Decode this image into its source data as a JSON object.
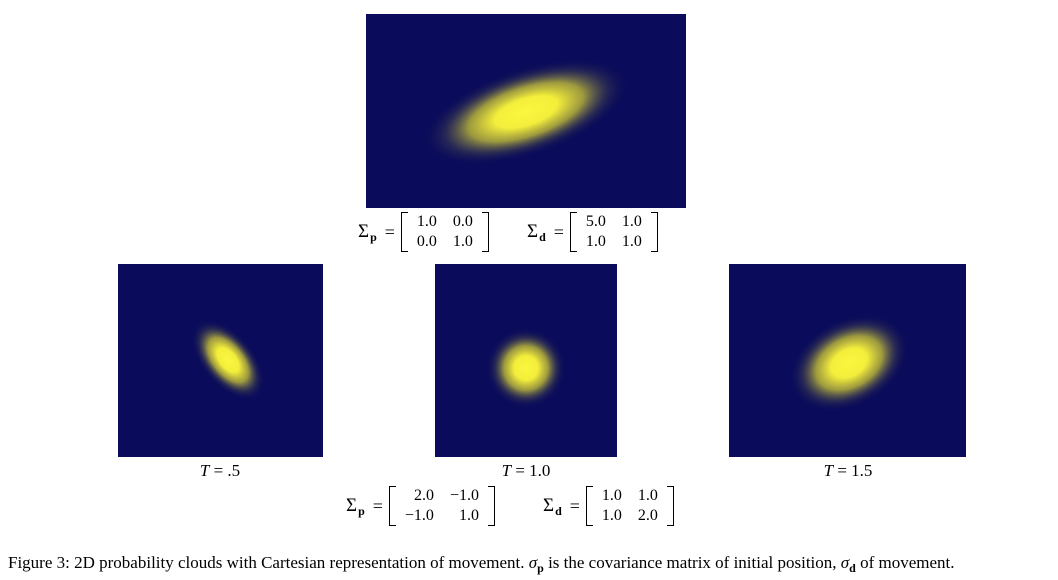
{
  "colors": {
    "background": "#0a0b5a",
    "blob_core": "#f5f03c",
    "blob_mid": "#b9b43a"
  },
  "top_plot": {
    "sigma_p": {
      "symbol": "Σ",
      "sub": "p",
      "equals": "=",
      "rows": [
        [
          "1.0",
          "0.0"
        ],
        [
          "0.0",
          "1.0"
        ]
      ]
    },
    "sigma_d": {
      "symbol": "Σ",
      "sub": "d",
      "equals": "=",
      "rows": [
        [
          "5.0",
          "1.0"
        ],
        [
          "1.0",
          "1.0"
        ]
      ]
    }
  },
  "bottom_plots": [
    {
      "label_var": "T",
      "label_op": "=",
      "label_val": ".5"
    },
    {
      "label_var": "T",
      "label_op": "=",
      "label_val": "1.0"
    },
    {
      "label_var": "T",
      "label_op": "=",
      "label_val": "1.5"
    }
  ],
  "bottom_eq": {
    "sigma_p": {
      "symbol": "Σ",
      "sub": "p",
      "equals": "=",
      "rows": [
        [
          "2.0",
          "−1.0"
        ],
        [
          "−1.0",
          "1.0"
        ]
      ]
    },
    "sigma_d": {
      "symbol": "Σ",
      "sub": "d",
      "equals": "=",
      "rows": [
        [
          "1.0",
          "1.0"
        ],
        [
          "1.0",
          "2.0"
        ]
      ]
    }
  },
  "caption": {
    "prefix": "Figure 3: 2D probability clouds with Cartesian representation of movement.",
    "sigma1": "σ",
    "sub1": "p",
    "middle": "is the covariance matrix of initial position,",
    "sigma2": "σ",
    "sub2": "d",
    "suffix": "of movement."
  }
}
